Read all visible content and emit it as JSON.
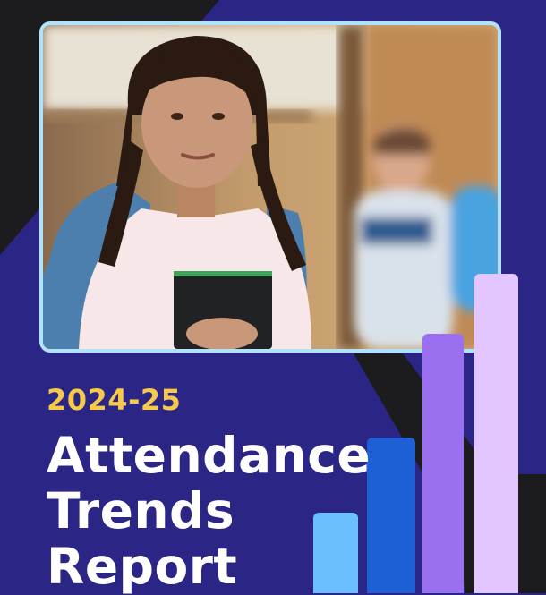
{
  "report": {
    "year": "2024-25",
    "title_lines": [
      "Attendance",
      "Trends",
      "Report"
    ]
  },
  "photo": {
    "description_icon": "student-photo"
  },
  "decor_bars": {
    "relative_heights": [
      0.31,
      0.6,
      1.0,
      1.23
    ],
    "colors": [
      "#6cbfff",
      "#1f5fd6",
      "#9b70f0",
      "#e3c6ff"
    ]
  },
  "colors": {
    "background": "#2b2585",
    "accent_dark": "#1c1c1e",
    "year_text": "#f7c94a",
    "title_text": "#ffffff",
    "frame_border": "#aee3fb"
  }
}
